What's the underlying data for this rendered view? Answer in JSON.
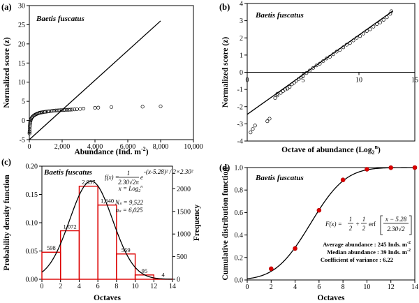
{
  "chart_data": [
    {
      "panel_label": "(a)",
      "type": "scatter",
      "annotation": "Baetis fuscatus",
      "xlabel": "Abundance (Ind. m",
      "xlabel_sup": "-2",
      "xlabel_end": ")",
      "ylabel": "Normalized score (z)",
      "xlim": [
        0,
        10000
      ],
      "ylim": [
        -5,
        30
      ],
      "xticks": [
        "0",
        "2,000",
        "4,000",
        "6,000",
        "8,000",
        "10,000"
      ],
      "yticks": [
        "-5",
        "0",
        "5",
        "10",
        "15",
        "20",
        "25",
        "30"
      ],
      "reference_line": {
        "x": [
          0,
          8000
        ],
        "y": [
          -5,
          26
        ]
      },
      "points": {
        "x": [
          10,
          12,
          15,
          20,
          25,
          30,
          40,
          50,
          60,
          80,
          100,
          130,
          160,
          200,
          250,
          300,
          350,
          400,
          450,
          500,
          560,
          620,
          680,
          740,
          800,
          880,
          960,
          1040,
          1120,
          1200,
          1300,
          1400,
          1500,
          1600,
          1700,
          1800,
          1900,
          2000,
          2100,
          2200,
          2300,
          2400,
          2500,
          2600,
          2750,
          2900,
          3100,
          3300,
          4000,
          4200,
          5000,
          6900,
          8000
        ],
        "y": [
          -3.4,
          -3.1,
          -2.8,
          -2.3,
          -1.8,
          -1.4,
          -1.0,
          -0.6,
          -0.3,
          0.0,
          0.3,
          0.6,
          0.8,
          1.0,
          1.2,
          1.35,
          1.5,
          1.6,
          1.7,
          1.8,
          1.9,
          2.0,
          2.05,
          2.1,
          2.15,
          2.2,
          2.25,
          2.3,
          2.35,
          2.4,
          2.45,
          2.5,
          2.55,
          2.6,
          2.62,
          2.65,
          2.68,
          2.7,
          2.72,
          2.75,
          2.78,
          2.8,
          2.82,
          2.85,
          2.9,
          2.95,
          3.0,
          3.1,
          3.3,
          3.35,
          3.5,
          3.6,
          3.7
        ]
      },
      "colors": {
        "line": "#000000",
        "points": "#000000"
      }
    },
    {
      "panel_label": "(b)",
      "type": "scatter",
      "annotation": "Baetis fuscatus",
      "xlabel": "Octave of abundance (Log",
      "xlabel_sub": "2",
      "xlabel_sup": "n",
      "xlabel_end": ")",
      "ylabel": "Normalized score (z)",
      "xlim": [
        0,
        15
      ],
      "ylim": [
        -4,
        4
      ],
      "xticks": [
        "0",
        "5",
        "10",
        "15"
      ],
      "yticks": [
        "-4",
        "-3",
        "-2",
        "-1",
        "0",
        "1",
        "2",
        "3",
        "4"
      ],
      "reference_line": {
        "x": [
          0,
          13
        ],
        "y": [
          -2.45,
          3.55
        ]
      },
      "points": {
        "x": [
          0.3,
          0.5,
          0.7,
          1.8,
          2.0,
          2.5,
          2.7,
          2.7,
          3.0,
          3.2,
          3.4,
          3.6,
          3.8,
          4.0,
          4.2,
          4.4,
          4.6,
          4.8,
          5.0,
          5.3,
          5.6,
          5.9,
          6.2,
          6.5,
          6.8,
          7.1,
          7.4,
          7.7,
          8.0,
          8.3,
          8.6,
          8.9,
          9.2,
          9.5,
          9.8,
          10.1,
          10.4,
          10.7,
          11.0,
          11.3,
          11.6,
          11.9,
          12.2,
          12.5,
          12.8,
          12.9
        ],
        "y": [
          -3.5,
          -3.3,
          -3.1,
          -2.85,
          -2.7,
          -1.5,
          -1.35,
          -1.25,
          -1.2,
          -1.1,
          -1.0,
          -0.95,
          -0.85,
          -0.7,
          -0.6,
          -0.5,
          -0.4,
          -0.3,
          -0.2,
          -0.05,
          0.1,
          0.25,
          0.4,
          0.5,
          0.65,
          0.8,
          0.9,
          1.05,
          1.2,
          1.3,
          1.45,
          1.6,
          1.7,
          1.85,
          2.0,
          2.1,
          2.25,
          2.4,
          2.5,
          2.65,
          2.8,
          2.9,
          3.05,
          3.2,
          3.4,
          3.55
        ]
      },
      "colors": {
        "line": "#000000",
        "points": "#000000"
      }
    },
    {
      "panel_label": "(c)",
      "type": "bar",
      "annotation": "Baetis fuscatus",
      "xlabel": "Octaves",
      "ylabel": "Probability density function",
      "ylabel_right": "Frequency",
      "xlim": [
        0,
        14
      ],
      "ylim": [
        0,
        0.2
      ],
      "ylim_right": [
        0,
        2500
      ],
      "xticks": [
        "0",
        "2",
        "4",
        "6",
        "8",
        "10",
        "12",
        "14"
      ],
      "yticks": [
        "0.00",
        "0.05",
        "0.10",
        "0.15",
        "0.20"
      ],
      "yticks_right": [
        "0",
        "500",
        "1000",
        "1500",
        "2000"
      ],
      "bins": {
        "left": [
          0,
          2,
          4,
          6,
          8,
          10,
          12
        ],
        "right": [
          2,
          4,
          6,
          8,
          10,
          12,
          14
        ],
        "frequency": [
          598,
          1072,
          2057,
          1640,
          559,
          95,
          4
        ],
        "labels": [
          "598",
          "1,072",
          "2,057",
          "1,640",
          "559",
          "95",
          "4"
        ]
      },
      "curve": {
        "type": "normal_pdf",
        "mean": 5.28,
        "sd": 2.3
      },
      "equation": {
        "lhs": "f(x) =",
        "numerator": "1",
        "denominator": "2.30√2π",
        "base": "e",
        "exponent": "-(x-5.28)² / 2×2.30²",
        "x_def": "x = Log",
        "x_def_sub": "2",
        "x_def_sup": "n",
        "N_s": "Nₛ = 9,522",
        "n_s": "nₛ = 6,025"
      },
      "colors": {
        "bars": "#dd0000",
        "curve": "#000000"
      }
    },
    {
      "panel_label": "(d)",
      "type": "line",
      "annotation": "Baetis fuscatus",
      "xlabel": "Octaves",
      "ylabel": "Cumulative distribution function",
      "xlim": [
        0,
        14
      ],
      "ylim": [
        0,
        1
      ],
      "xticks": [
        "0",
        "2",
        "4",
        "6",
        "8",
        "10",
        "12",
        "14"
      ],
      "yticks": [
        "0.0",
        "0.2",
        "0.4",
        "0.6",
        "0.8",
        "1.0"
      ],
      "curve": {
        "type": "normal_cdf",
        "mean": 5.28,
        "sd": 2.3
      },
      "points": {
        "x": [
          2,
          4,
          6,
          8,
          10,
          12,
          14
        ],
        "y": [
          0.1,
          0.28,
          0.62,
          0.89,
          0.985,
          0.999,
          1.0
        ]
      },
      "equation": {
        "lhs": "F(x) =",
        "part1": "1",
        "part1_den": "2",
        "plus": "+",
        "part2": "1",
        "part2_den": "2",
        "erf": "erf",
        "num": "x − 5.28",
        "den": "2.30√2"
      },
      "notes": [
        {
          "label": "Average abundance : 245 Inds. m",
          "sup": "-2"
        },
        {
          "label": "Median abundance :  39 Inds. m",
          "sup": "-2"
        },
        {
          "label": "Coefficient of variance : 6.22",
          "sup": ""
        }
      ],
      "colors": {
        "curve": "#000000",
        "points": "#dd0000",
        "point_edge": "#aa0000"
      }
    }
  ]
}
